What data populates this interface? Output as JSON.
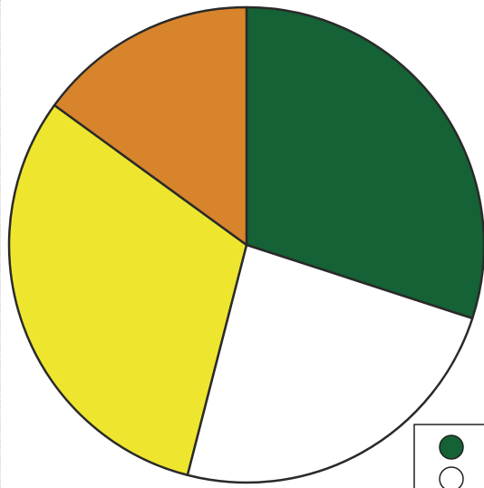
{
  "chart_data": {
    "type": "pie",
    "title": "",
    "slices": [
      {
        "value": 30,
        "color": "#146235"
      },
      {
        "value": 24,
        "color": "#ffffff"
      },
      {
        "value": 31,
        "color": "#eee62e"
      },
      {
        "value": 15,
        "color": "#d8842c"
      }
    ],
    "start_angle_deg": 0,
    "direction": "clockwise",
    "legend": {
      "placement": "bottom-right",
      "items": [
        {
          "color": "#146235"
        },
        {
          "color": "#ffffff"
        }
      ]
    }
  }
}
